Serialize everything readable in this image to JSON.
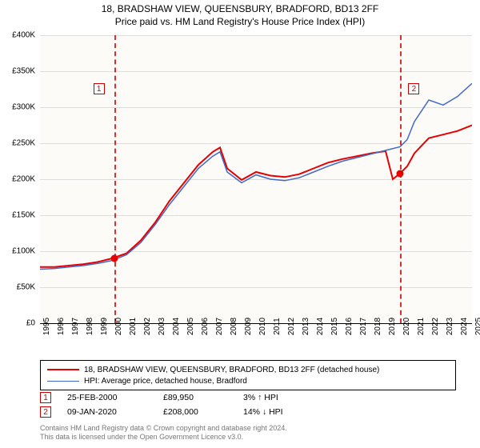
{
  "title": {
    "line1": "18, BRADSHAW VIEW, QUEENSBURY, BRADFORD, BD13 2FF",
    "line2": "Price paid vs. HM Land Registry's House Price Index (HPI)"
  },
  "chart": {
    "type": "line",
    "background_color": "#fcfbf8",
    "grid_color": "#dddddd",
    "ylim": [
      0,
      400000
    ],
    "ytick_step": 50000,
    "yticks": [
      "£0",
      "£50K",
      "£100K",
      "£150K",
      "£200K",
      "£250K",
      "£300K",
      "£350K",
      "£400K"
    ],
    "xlim": [
      1995,
      2025
    ],
    "xticks": [
      "1995",
      "1996",
      "1997",
      "1998",
      "1999",
      "2000",
      "2001",
      "2002",
      "2003",
      "2004",
      "2005",
      "2006",
      "2007",
      "2008",
      "2009",
      "2010",
      "2011",
      "2012",
      "2013",
      "2014",
      "2015",
      "2016",
      "2017",
      "2018",
      "2019",
      "2020",
      "2021",
      "2022",
      "2023",
      "2024",
      "2025"
    ],
    "series": [
      {
        "name": "property",
        "label": "18, BRADSHAW VIEW, QUEENSBURY, BRADFORD, BD13 2FF (detached house)",
        "color": "#e60000",
        "line_width": 2,
        "data": [
          [
            1995,
            78000
          ],
          [
            1996,
            78000
          ],
          [
            1997,
            80000
          ],
          [
            1998,
            82000
          ],
          [
            1999,
            85000
          ],
          [
            2000,
            89950
          ],
          [
            2001,
            97000
          ],
          [
            2002,
            115000
          ],
          [
            2003,
            140000
          ],
          [
            2004,
            170000
          ],
          [
            2005,
            195000
          ],
          [
            2006,
            220000
          ],
          [
            2007,
            238000
          ],
          [
            2007.5,
            244000
          ],
          [
            2008,
            215000
          ],
          [
            2009,
            199000
          ],
          [
            2010,
            210000
          ],
          [
            2011,
            205000
          ],
          [
            2012,
            203000
          ],
          [
            2013,
            207000
          ],
          [
            2014,
            215000
          ],
          [
            2015,
            223000
          ],
          [
            2016,
            228000
          ],
          [
            2017,
            232000
          ],
          [
            2018,
            236000
          ],
          [
            2019,
            239000
          ],
          [
            2019.5,
            200000
          ],
          [
            2020,
            208000
          ],
          [
            2020.5,
            218000
          ],
          [
            2021,
            236000
          ],
          [
            2022,
            257000
          ],
          [
            2023,
            262000
          ],
          [
            2024,
            267000
          ],
          [
            2025,
            275000
          ]
        ]
      },
      {
        "name": "hpi",
        "label": "HPI: Average price, detached house, Bradford",
        "color": "#4169c8",
        "line_width": 1.5,
        "data": [
          [
            1995,
            75000
          ],
          [
            1996,
            76000
          ],
          [
            1997,
            78000
          ],
          [
            1998,
            80000
          ],
          [
            1999,
            83000
          ],
          [
            2000,
            87000
          ],
          [
            2001,
            95000
          ],
          [
            2002,
            112000
          ],
          [
            2003,
            137000
          ],
          [
            2004,
            165000
          ],
          [
            2005,
            190000
          ],
          [
            2006,
            215000
          ],
          [
            2007,
            232000
          ],
          [
            2007.5,
            238000
          ],
          [
            2008,
            210000
          ],
          [
            2009,
            195000
          ],
          [
            2010,
            206000
          ],
          [
            2011,
            200000
          ],
          [
            2012,
            198000
          ],
          [
            2013,
            202000
          ],
          [
            2014,
            210000
          ],
          [
            2015,
            218000
          ],
          [
            2016,
            225000
          ],
          [
            2017,
            230000
          ],
          [
            2018,
            235000
          ],
          [
            2019,
            240000
          ],
          [
            2020,
            245000
          ],
          [
            2020.5,
            255000
          ],
          [
            2021,
            280000
          ],
          [
            2022,
            310000
          ],
          [
            2023,
            303000
          ],
          [
            2024,
            315000
          ],
          [
            2025,
            333000
          ]
        ]
      }
    ],
    "markers": [
      {
        "id": "1",
        "year": 2000.15,
        "value": 89950,
        "box_top": 60
      },
      {
        "id": "2",
        "year": 2020.02,
        "value": 208000,
        "box_top": 60
      }
    ],
    "marker_color": "#e60000",
    "marker_dash_color": "#cc0000"
  },
  "legend": {
    "items": [
      {
        "color": "#e60000",
        "label": "18, BRADSHAW VIEW, QUEENSBURY, BRADFORD, BD13 2FF (detached house)"
      },
      {
        "color": "#4169c8",
        "label": "HPI: Average price, detached house, Bradford"
      }
    ]
  },
  "sales": [
    {
      "id": "1",
      "date": "25-FEB-2000",
      "price": "£89,950",
      "diff": "3% ↑ HPI"
    },
    {
      "id": "2",
      "date": "09-JAN-2020",
      "price": "£208,000",
      "diff": "14% ↓ HPI"
    }
  ],
  "footer": {
    "line1": "Contains HM Land Registry data © Crown copyright and database right 2024.",
    "line2": "This data is licensed under the Open Government Licence v3.0."
  }
}
